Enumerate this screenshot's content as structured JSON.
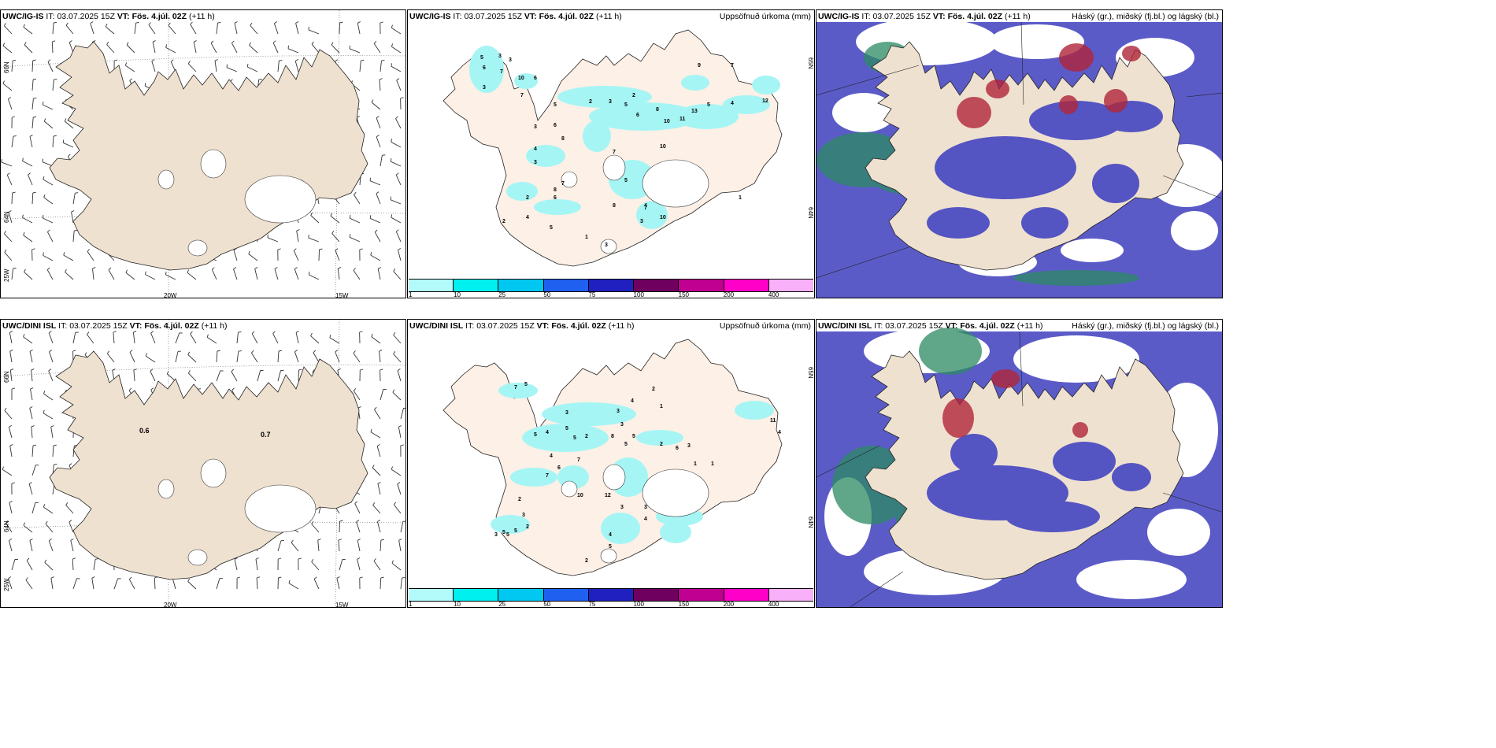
{
  "rows": [
    {
      "model": "UWC/IG-IS",
      "it_label": "IT:",
      "it_value": "03.07.2025 15Z",
      "vt_label": "VT:",
      "vt_value": "Fös. 4.júl. 02Z",
      "lead": "(+11 h)"
    },
    {
      "model": "UWC/DINI ISL",
      "it_label": "IT:",
      "it_value": "03.07.2025 15Z",
      "vt_label": "VT:",
      "vt_value": "Fös. 4.júl. 02Z",
      "lead": "(+11 h)"
    }
  ],
  "precip_title": "Uppsöfnuð úrkoma (mm)",
  "cloud_title": "Háský (gr.), miðský (fj.bl.) og lágský (bl.)",
  "wind_panel": {
    "lat_labels": [
      "66N",
      "64N",
      "25W"
    ],
    "lon_labels": [
      "20W",
      "15W"
    ],
    "wind_values_dini": [
      "0.6",
      "0.7"
    ]
  },
  "precip_panel": {
    "lat_labels": [
      "65N",
      "64N"
    ]
  },
  "precip_legend": {
    "ticks": [
      "1",
      "10",
      "25",
      "50",
      "75",
      "100",
      "150",
      "200",
      "400"
    ],
    "colors": [
      "#b3fbfb",
      "#00f0f0",
      "#00c8f0",
      "#2060f0",
      "#2020c0",
      "#700060",
      "#c00090",
      "#ff00c8",
      "#f8b0f8"
    ]
  },
  "precip_numbers_top": [
    "5",
    "3",
    "3",
    "6",
    "7",
    "10",
    "6",
    "3",
    "7",
    "2",
    "9",
    "7",
    "5",
    "2",
    "3",
    "5",
    "6",
    "8",
    "10",
    "11",
    "13",
    "5",
    "4",
    "12",
    "3",
    "6",
    "4",
    "8",
    "3",
    "7",
    "10",
    "7",
    "8",
    "5",
    "4",
    "1",
    "6",
    "5",
    "2",
    "8",
    "7",
    "3",
    "10",
    "4",
    "2",
    "1",
    "3"
  ],
  "precip_numbers_bottom": [
    "7",
    "5",
    "3",
    "2",
    "1",
    "5",
    "4",
    "5",
    "5",
    "2",
    "3",
    "4",
    "4",
    "3",
    "5",
    "11",
    "4",
    "6",
    "7",
    "8",
    "5",
    "2",
    "6",
    "3",
    "1",
    "1",
    "7",
    "10",
    "12",
    "3",
    "2",
    "3",
    "2",
    "5",
    "5",
    "5",
    "3",
    "4",
    "5",
    "3",
    "4",
    "2"
  ]
}
